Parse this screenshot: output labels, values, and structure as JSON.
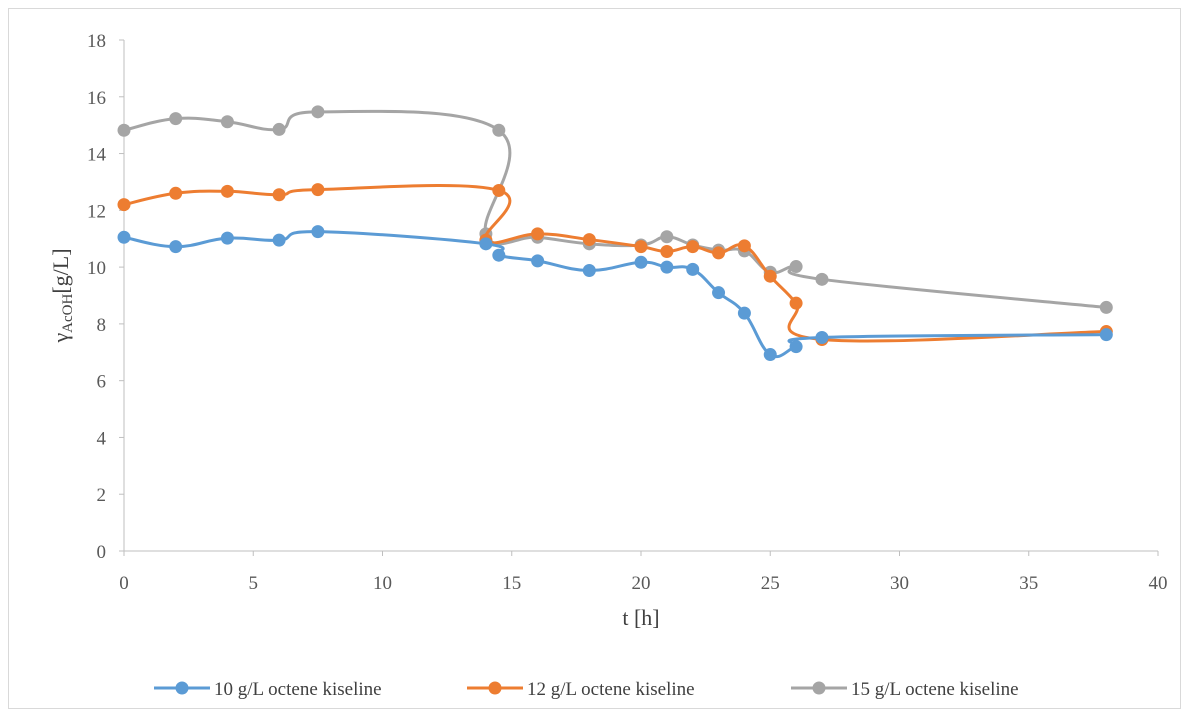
{
  "chart_data": {
    "type": "line",
    "title": "",
    "xlabel": "t [h]",
    "ylabel_main": "γ",
    "ylabel_sub": "AcOH",
    "ylabel_unit": "[g/L]",
    "xlim": [
      0,
      40
    ],
    "ylim": [
      0,
      18
    ],
    "x_ticks": [
      0,
      5,
      10,
      15,
      20,
      25,
      30,
      35,
      40
    ],
    "y_ticks": [
      0,
      2,
      4,
      6,
      8,
      10,
      12,
      14,
      16,
      18
    ],
    "grid": false,
    "legend_position": "bottom",
    "series": [
      {
        "name": "10 g/L octene kiseline",
        "color": "#5b9bd5",
        "points": [
          [
            0,
            11.05
          ],
          [
            2,
            10.72
          ],
          [
            4,
            11.02
          ],
          [
            6,
            10.95
          ],
          [
            7.5,
            11.25
          ],
          [
            14,
            10.82
          ],
          [
            14.5,
            10.42
          ],
          [
            16,
            10.22
          ],
          [
            18,
            9.88
          ],
          [
            20,
            10.17
          ],
          [
            21,
            10.0
          ],
          [
            22,
            9.92
          ],
          [
            23,
            9.1
          ],
          [
            24,
            8.38
          ],
          [
            25,
            6.92
          ],
          [
            26,
            7.2
          ],
          [
            27,
            7.52
          ],
          [
            38,
            7.62
          ]
        ]
      },
      {
        "name": "12 g/L octene kiseline",
        "color": "#ed7d31",
        "points": [
          [
            0,
            12.2
          ],
          [
            2,
            12.6
          ],
          [
            4,
            12.67
          ],
          [
            6,
            12.55
          ],
          [
            7.5,
            12.73
          ],
          [
            14.5,
            12.7
          ],
          [
            14,
            10.95
          ],
          [
            16,
            11.17
          ],
          [
            18,
            10.97
          ],
          [
            20,
            10.72
          ],
          [
            21,
            10.55
          ],
          [
            22,
            10.72
          ],
          [
            23,
            10.5
          ],
          [
            24,
            10.75
          ],
          [
            25,
            9.68
          ],
          [
            26,
            8.73
          ],
          [
            27,
            7.45
          ],
          [
            38,
            7.73
          ]
        ]
      },
      {
        "name": "15 g/L octene kiseline",
        "color": "#a5a5a5",
        "points": [
          [
            0,
            14.82
          ],
          [
            2,
            15.23
          ],
          [
            4,
            15.12
          ],
          [
            6,
            14.85
          ],
          [
            7.5,
            15.47
          ],
          [
            14.5,
            14.82
          ],
          [
            14,
            11.17
          ],
          [
            16,
            11.05
          ],
          [
            18,
            10.82
          ],
          [
            20,
            10.78
          ],
          [
            21,
            11.07
          ],
          [
            22,
            10.78
          ],
          [
            23,
            10.6
          ],
          [
            24,
            10.57
          ],
          [
            25,
            9.82
          ],
          [
            26,
            10.02
          ],
          [
            27,
            9.57
          ],
          [
            38,
            8.58
          ]
        ]
      }
    ]
  }
}
